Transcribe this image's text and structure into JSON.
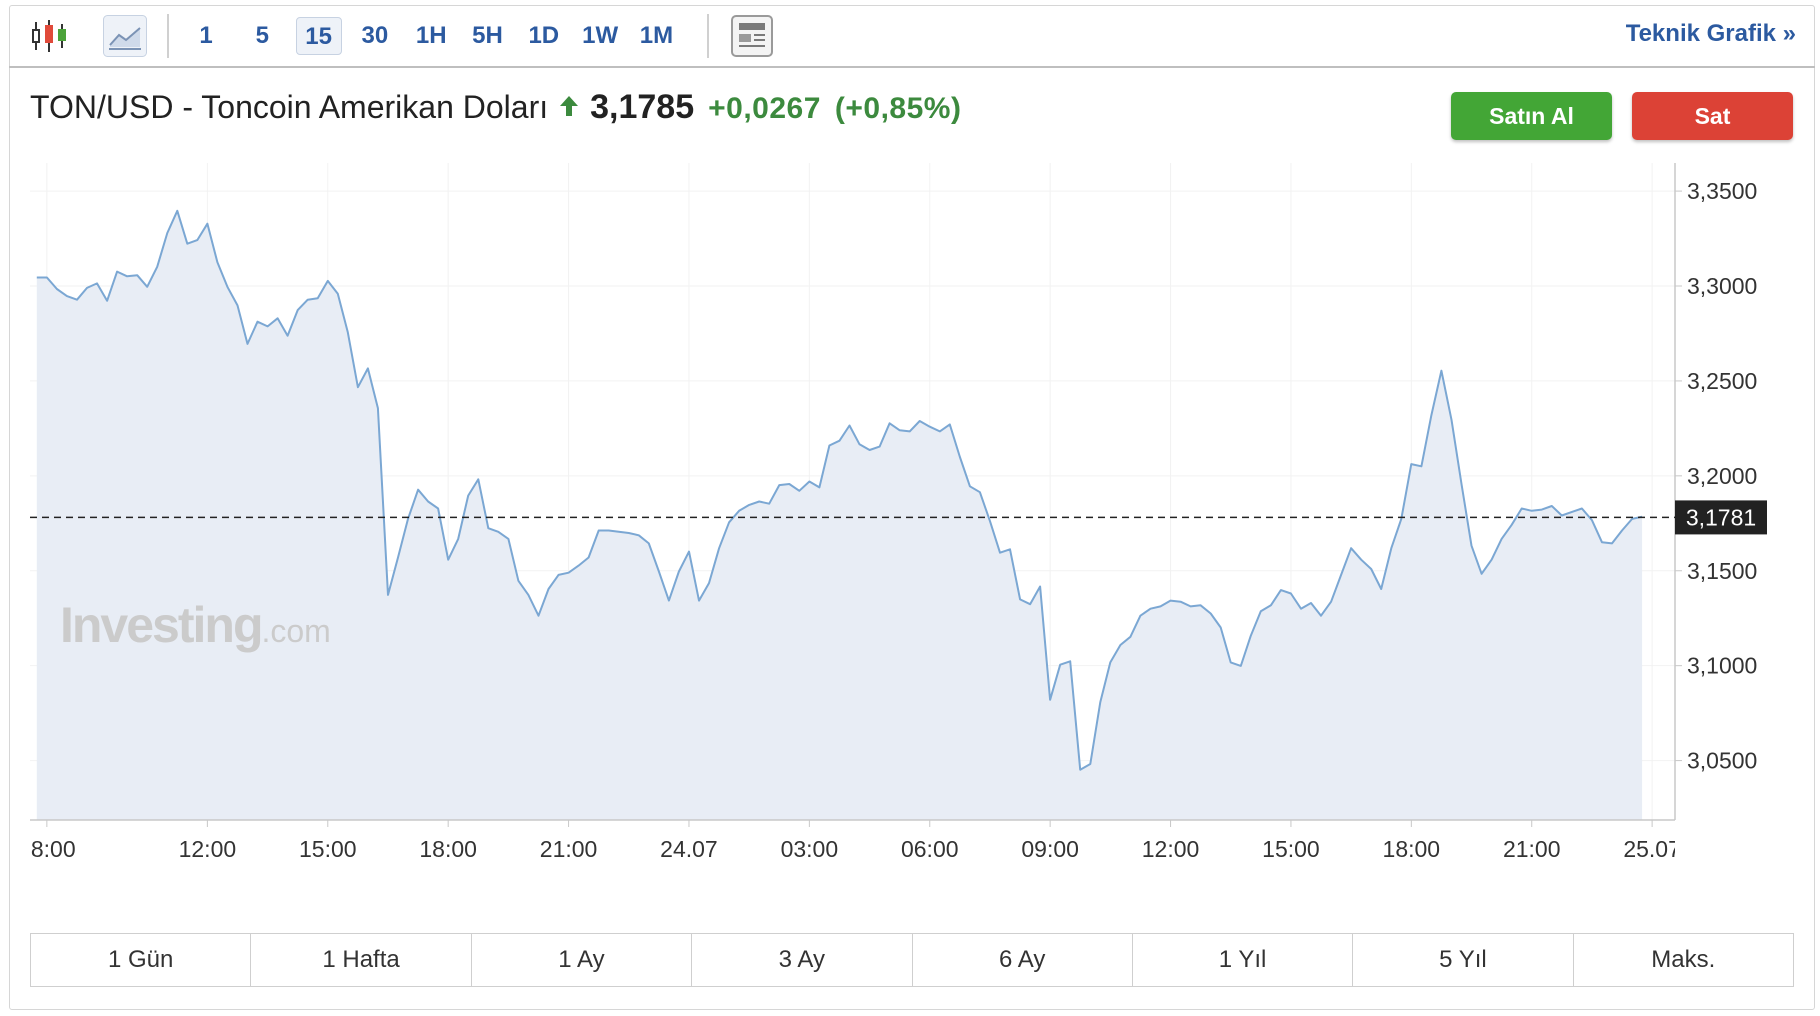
{
  "toolbar": {
    "intervals": [
      "1",
      "5",
      "15",
      "30",
      "1H",
      "5H",
      "1D",
      "1W",
      "1M"
    ],
    "active_interval": 2,
    "link": "Teknik Grafik »"
  },
  "header": {
    "title": "TON/USD - Toncoin Amerikan Doları",
    "price": "3,1785",
    "change": "+0,0267",
    "change_percent": "(+0,85%)"
  },
  "buttons": {
    "buy": "Satın Al",
    "sell": "Sat"
  },
  "watermark": {
    "brand": "Investing",
    "suffix": ".com"
  },
  "chart_data": {
    "type": "line",
    "color": "#7ba7d3",
    "area_color": "#e8edf5",
    "grid": true,
    "x": [
      7.75,
      8,
      8.25,
      8.5,
      8.75,
      9,
      9.25,
      9.5,
      9.75,
      10,
      10.25,
      10.5,
      10.75,
      11,
      11.25,
      11.5,
      11.75,
      12,
      12.25,
      12.5,
      12.75,
      13,
      13.25,
      13.5,
      13.75,
      14,
      14.25,
      14.5,
      14.75,
      15,
      15.25,
      15.5,
      15.75,
      16,
      16.25,
      16.5,
      16.75,
      17,
      17.25,
      17.5,
      17.75,
      18,
      18.25,
      18.5,
      18.75,
      19,
      19.25,
      19.5,
      19.75,
      20,
      20.25,
      20.5,
      20.75,
      21,
      21.25,
      21.5,
      21.75,
      22,
      22.25,
      22.5,
      22.75,
      23,
      23.25,
      23.5,
      23.75,
      24,
      24.25,
      24.5,
      24.75,
      25,
      25.25,
      25.5,
      25.75,
      26,
      26.25,
      26.5,
      26.75,
      27,
      27.25,
      27.5,
      27.75,
      28,
      28.25,
      28.5,
      28.75,
      29,
      29.25,
      29.5,
      29.75,
      30,
      30.25,
      30.5,
      30.75,
      31,
      31.25,
      31.5,
      31.75,
      32,
      32.25,
      32.5,
      32.75,
      33,
      33.25,
      33.5,
      33.75,
      34,
      34.25,
      34.5,
      34.75,
      35,
      35.25,
      35.5,
      35.75,
      36,
      36.25,
      36.5,
      36.75,
      37,
      37.25,
      37.5,
      37.75,
      38,
      38.25,
      38.5,
      38.75,
      39,
      39.25,
      39.5,
      39.75,
      40,
      40.25,
      40.5,
      40.75,
      41,
      41.25,
      41.5,
      41.75,
      42,
      42.25,
      42.5,
      42.75,
      43,
      43.25,
      43.5,
      43.75,
      44,
      44.25,
      44.5,
      44.75,
      45,
      45.25,
      45.5,
      45.75,
      46,
      46.25,
      46.5,
      46.75,
      47,
      47.25,
      47.5,
      47.75
    ],
    "values": [
      3.3045,
      3.3045,
      3.2984,
      3.2947,
      3.2928,
      3.299,
      3.3014,
      3.2922,
      3.3076,
      3.3051,
      3.3057,
      3.2996,
      3.3101,
      3.3279,
      3.3396,
      3.3223,
      3.3242,
      3.3328,
      3.3125,
      3.2996,
      3.2898,
      3.2695,
      3.2812,
      3.2787,
      3.283,
      3.2738,
      3.2873,
      3.2928,
      3.2935,
      3.3027,
      3.2959,
      3.2756,
      3.2467,
      3.2566,
      3.2357,
      3.1373,
      3.157,
      3.1773,
      3.1927,
      3.1865,
      3.1828,
      3.1558,
      3.1668,
      3.1896,
      3.1982,
      3.1724,
      3.1705,
      3.1668,
      3.1447,
      3.1373,
      3.1263,
      3.1404,
      3.1478,
      3.149,
      3.1527,
      3.157,
      3.1712,
      3.1712,
      3.1705,
      3.1699,
      3.1687,
      3.1644,
      3.1496,
      3.1343,
      3.1496,
      3.1601,
      3.1343,
      3.1435,
      3.1619,
      3.1755,
      3.1816,
      3.1847,
      3.1865,
      3.1853,
      3.1951,
      3.1957,
      3.1921,
      3.197,
      3.1939,
      3.216,
      3.2185,
      3.2265,
      3.2166,
      3.2136,
      3.2154,
      3.2277,
      3.224,
      3.2234,
      3.2289,
      3.2259,
      3.2234,
      3.2271,
      3.2099,
      3.1945,
      3.1914,
      3.1761,
      3.1595,
      3.1613,
      3.1349,
      3.1324,
      3.1417,
      3.082,
      3.1005,
      3.1023,
      3.0452,
      3.0482,
      3.0808,
      3.1017,
      3.1109,
      3.1152,
      3.1263,
      3.13,
      3.1312,
      3.1343,
      3.1337,
      3.1312,
      3.1318,
      3.1275,
      3.1201,
      3.1017,
      3.0999,
      3.1158,
      3.1287,
      3.1318,
      3.1398,
      3.138,
      3.13,
      3.133,
      3.1263,
      3.1337,
      3.1478,
      3.1619,
      3.1558,
      3.1509,
      3.1404,
      3.1619,
      3.1773,
      3.2062,
      3.205,
      3.232,
      3.2554,
      3.2295,
      3.1957,
      3.1632,
      3.1484,
      3.1558,
      3.1668,
      3.1742,
      3.1828,
      3.1816,
      3.1822,
      3.1841,
      3.1791,
      3.181,
      3.1828,
      3.1767,
      3.165,
      3.1644,
      3.1712,
      3.1773,
      3.1785
    ],
    "xlim": [
      7.58,
      48.57
    ],
    "ylim": [
      3.0187,
      3.3648
    ],
    "xticks": [
      {
        "value": 8,
        "label": "08:00"
      },
      {
        "value": 12,
        "label": "12:00"
      },
      {
        "value": 15,
        "label": "15:00"
      },
      {
        "value": 18,
        "label": "18:00"
      },
      {
        "value": 21,
        "label": "21:00"
      },
      {
        "value": 24,
        "label": "24.07"
      },
      {
        "value": 27,
        "label": "03:00"
      },
      {
        "value": 30,
        "label": "06:00"
      },
      {
        "value": 33,
        "label": "09:00"
      },
      {
        "value": 36,
        "label": "12:00"
      },
      {
        "value": 39,
        "label": "15:00"
      },
      {
        "value": 42,
        "label": "18:00"
      },
      {
        "value": 45,
        "label": "21:00"
      },
      {
        "value": 48,
        "label": "25.07"
      }
    ],
    "yticks": [
      {
        "value": 3.05,
        "label": "3,0500"
      },
      {
        "value": 3.1,
        "label": "3,1000"
      },
      {
        "value": 3.15,
        "label": "3,1500"
      },
      {
        "value": 3.2,
        "label": "3,2000"
      },
      {
        "value": 3.25,
        "label": "3,2500"
      },
      {
        "value": 3.3,
        "label": "3,3000"
      },
      {
        "value": 3.35,
        "label": "3,3500"
      }
    ],
    "reference_line": {
      "value": 3.1781,
      "label": "3,1781"
    }
  },
  "ranges": [
    "1 Gün",
    "1 Hafta",
    "1 Ay",
    "3 Ay",
    "6 Ay",
    "1 Yıl",
    "5 Yıl",
    "Maks."
  ]
}
